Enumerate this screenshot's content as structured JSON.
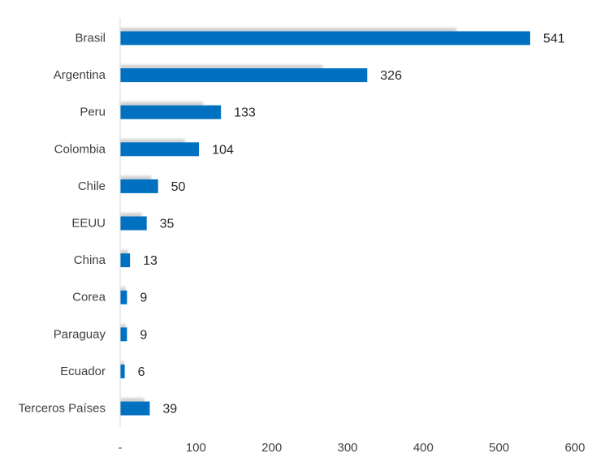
{
  "chart_data": {
    "type": "bar",
    "orientation": "horizontal",
    "categories": [
      "Brasil",
      "Argentina",
      "Peru",
      "Colombia",
      "Chile",
      "EEUU",
      "China",
      "Corea",
      "Paraguay",
      "Ecuador",
      "Terceros Países"
    ],
    "values": [
      541,
      326,
      133,
      104,
      50,
      35,
      13,
      9,
      9,
      6,
      39
    ],
    "value_labels": [
      "541",
      "326",
      "133",
      "104",
      "50",
      "35",
      "13",
      "9",
      "9",
      "6",
      "39"
    ],
    "xlim": [
      0,
      600
    ],
    "x_ticks": [
      0,
      100,
      200,
      300,
      400,
      500,
      600
    ],
    "x_tick_labels": [
      "-",
      "100",
      "200",
      "300",
      "400",
      "500",
      "600"
    ],
    "grid": false,
    "bar_color": "#0070C0"
  }
}
